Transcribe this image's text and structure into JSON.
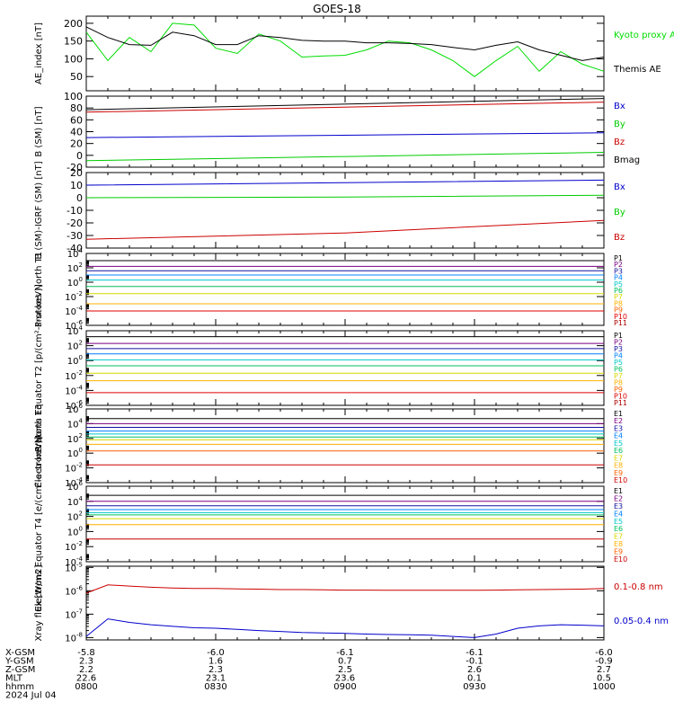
{
  "title": "GOES-18",
  "date": "2024 Jul 04",
  "time_axis": {
    "ticks": [
      "0800",
      "0830",
      "0900",
      "0930",
      "1000"
    ],
    "rows": [
      {
        "label": "X-GSM",
        "values": [
          "-5.8",
          "-6.0",
          "-6.1",
          "-6.1",
          "-6.0"
        ]
      },
      {
        "label": "Y-GSM",
        "values": [
          "2.3",
          "1.6",
          "0.7",
          "-0.1",
          "-0.9"
        ]
      },
      {
        "label": "Z-GSM",
        "values": [
          "2.2",
          "2.3",
          "2.5",
          "2.6",
          "2.7"
        ]
      },
      {
        "label": "MLT",
        "values": [
          "22.6",
          "23.1",
          "23.6",
          "0.1",
          "0.5"
        ]
      },
      {
        "label": "hhmm",
        "values": [
          "0800",
          "0830",
          "0900",
          "0930",
          "1000"
        ]
      }
    ]
  },
  "chart_data": [
    {
      "type": "line",
      "ylabel": "AE_index [nT]",
      "yticks": [
        "50",
        "100",
        "150",
        "200"
      ],
      "ylim": [
        10,
        220
      ],
      "x": [
        "0800",
        "0805",
        "0810",
        "0815",
        "0820",
        "0825",
        "0830",
        "0835",
        "0840",
        "0845",
        "0850",
        "0855",
        "0900",
        "0905",
        "0910",
        "0915",
        "0920",
        "0925",
        "0930",
        "0935",
        "0940",
        "0945",
        "0950",
        "0955",
        "1000"
      ],
      "series": [
        {
          "name": "Kyoto proxy AE",
          "color": "#00dd00",
          "values": [
            175,
            95,
            160,
            120,
            200,
            195,
            130,
            115,
            170,
            150,
            105,
            108,
            110,
            125,
            150,
            145,
            125,
            95,
            50,
            95,
            135,
            65,
            120,
            85,
            65
          ]
        },
        {
          "name": "Themis AE",
          "color": "#000000",
          "values": [
            190,
            160,
            140,
            138,
            175,
            165,
            140,
            140,
            165,
            160,
            152,
            150,
            150,
            145,
            145,
            143,
            140,
            132,
            125,
            138,
            148,
            125,
            110,
            95,
            105
          ]
        }
      ]
    },
    {
      "type": "line",
      "ylabel": "B (SM) [nT]",
      "yticks": [
        "-20",
        "0",
        "20",
        "40",
        "60",
        "80",
        "100"
      ],
      "ylim": [
        -20,
        100
      ],
      "x": [
        "0800",
        "1000"
      ],
      "series": [
        {
          "name": "Bx",
          "color": "#0000cc",
          "values": [
            30,
            38
          ]
        },
        {
          "name": "By",
          "color": "#00cc00",
          "values": [
            -9,
            5
          ]
        },
        {
          "name": "Bz",
          "color": "#cc0000",
          "values": [
            73,
            90
          ]
        },
        {
          "name": "Bmag",
          "color": "#000000",
          "values": [
            77,
            96
          ]
        }
      ]
    },
    {
      "type": "line",
      "ylabel": "B (SM)-IGRF (SM) [nT]",
      "yticks": [
        "-40",
        "-30",
        "-20",
        "-10",
        "0",
        "10",
        "20"
      ],
      "ylim": [
        -40,
        20
      ],
      "x": [
        "0800",
        "0900",
        "1000"
      ],
      "series": [
        {
          "name": "Bx",
          "color": "#0000cc",
          "values": [
            10,
            12,
            14
          ]
        },
        {
          "name": "By",
          "color": "#00cc00",
          "values": [
            0,
            0.5,
            2
          ]
        },
        {
          "name": "Bz",
          "color": "#cc0000",
          "values": [
            -33,
            -28,
            -18
          ]
        }
      ]
    },
    {
      "type": "line",
      "ylog": true,
      "ylabel": "Protons North T1",
      "ylim": [
        -6,
        4
      ],
      "yticks": [
        {
          "exp": "4",
          "pos": 4
        },
        {
          "exp": "2",
          "pos": 2
        },
        {
          "exp": "0",
          "pos": 0
        },
        {
          "exp": "-2",
          "pos": -2
        },
        {
          "exp": "-4",
          "pos": -4
        },
        {
          "exp": "-6",
          "pos": -6
        }
      ],
      "series": [
        {
          "name": "P1",
          "color": "#000000",
          "values": [
            3.0
          ]
        },
        {
          "name": "P2",
          "color": "#7a0080",
          "values": [
            2.2
          ]
        },
        {
          "name": "P3",
          "color": "#1010a0",
          "values": [
            1.6
          ]
        },
        {
          "name": "P4",
          "color": "#0080ff",
          "values": [
            1.0
          ]
        },
        {
          "name": "P5",
          "color": "#00c8c8",
          "values": [
            0.3
          ]
        },
        {
          "name": "P6",
          "color": "#00c060",
          "values": [
            -0.6
          ]
        },
        {
          "name": "P7",
          "color": "#d8d800",
          "values": [
            -1.6
          ]
        },
        {
          "name": "P8",
          "color": "#ffb000",
          "values": [
            -3.0
          ]
        },
        {
          "name": "P9",
          "color": "#ff6000",
          "values": []
        },
        {
          "name": "P10",
          "color": "#e00000",
          "values": [
            -4.0
          ]
        },
        {
          "name": "P11",
          "color": "#aa0000",
          "values": []
        }
      ]
    },
    {
      "type": "line",
      "ylog": true,
      "ylabel": "Protons Equator T2 [p/(cm²-s-sr-keV)]",
      "ylim": [
        -6,
        4
      ],
      "yticks": [
        {
          "exp": "4",
          "pos": 4
        },
        {
          "exp": "2",
          "pos": 2
        },
        {
          "exp": "0",
          "pos": 0
        },
        {
          "exp": "-2",
          "pos": -2
        },
        {
          "exp": "-4",
          "pos": -4
        },
        {
          "exp": "-6",
          "pos": -6
        }
      ],
      "series": [
        {
          "name": "P1",
          "color": "#000000",
          "values": [
            3.2
          ]
        },
        {
          "name": "P2",
          "color": "#7a0080",
          "values": [
            2.3
          ]
        },
        {
          "name": "P3",
          "color": "#1010a0",
          "values": [
            1.6
          ]
        },
        {
          "name": "P4",
          "color": "#0080ff",
          "values": [
            0.9
          ]
        },
        {
          "name": "P5",
          "color": "#00c8c8",
          "values": [
            0.1
          ]
        },
        {
          "name": "P6",
          "color": "#00c060",
          "values": [
            -0.7
          ]
        },
        {
          "name": "P7",
          "color": "#d8d800",
          "values": [
            -1.7
          ]
        },
        {
          "name": "P8",
          "color": "#ffb000",
          "values": [
            -2.7
          ]
        },
        {
          "name": "P9",
          "color": "#ff6000",
          "values": []
        },
        {
          "name": "P10",
          "color": "#e00000",
          "values": [
            -4.3
          ]
        },
        {
          "name": "P11",
          "color": "#aa0000",
          "values": []
        }
      ]
    },
    {
      "type": "line",
      "ylog": true,
      "ylabel": "Electrons North T3",
      "ylim": [
        -4,
        6
      ],
      "yticks": [
        {
          "exp": "6",
          "pos": 6
        },
        {
          "exp": "4",
          "pos": 4
        },
        {
          "exp": "2",
          "pos": 2
        },
        {
          "exp": "0",
          "pos": 0
        },
        {
          "exp": "-2",
          "pos": -2
        },
        {
          "exp": "-4",
          "pos": -4
        }
      ],
      "series": [
        {
          "name": "E1",
          "color": "#000000",
          "values": [
            4.7
          ]
        },
        {
          "name": "E2",
          "color": "#7a0080",
          "values": [
            4.0
          ]
        },
        {
          "name": "E3",
          "color": "#1010a0",
          "values": [
            3.5
          ]
        },
        {
          "name": "E4",
          "color": "#0080ff",
          "values": [
            3.0
          ]
        },
        {
          "name": "E5",
          "color": "#00c8c8",
          "values": [
            2.6
          ]
        },
        {
          "name": "E6",
          "color": "#00c060",
          "values": [
            2.2
          ]
        },
        {
          "name": "E7",
          "color": "#d8d800",
          "values": [
            1.8
          ]
        },
        {
          "name": "E8",
          "color": "#ffb000",
          "values": [
            1.2
          ]
        },
        {
          "name": "E9",
          "color": "#ff6000",
          "values": [
            0.3
          ]
        },
        {
          "name": "E10",
          "color": "#cc0000",
          "values": [
            -1.6
          ]
        }
      ]
    },
    {
      "type": "line",
      "ylog": true,
      "ylabel": "Electrons Equator T4 [e/(cm²-s-sr-keV)]",
      "ylim": [
        -4,
        6
      ],
      "yticks": [
        {
          "exp": "6",
          "pos": 6
        },
        {
          "exp": "4",
          "pos": 4
        },
        {
          "exp": "2",
          "pos": 2
        },
        {
          "exp": "0",
          "pos": 0
        },
        {
          "exp": "-2",
          "pos": -2
        },
        {
          "exp": "-4",
          "pos": -4
        }
      ],
      "series": [
        {
          "name": "E1",
          "color": "#000000",
          "values": [
            4.8
          ]
        },
        {
          "name": "E2",
          "color": "#7a0080",
          "values": [
            4.0
          ]
        },
        {
          "name": "E3",
          "color": "#1010a0",
          "values": [
            3.4
          ]
        },
        {
          "name": "E4",
          "color": "#0080ff",
          "values": [
            2.9
          ]
        },
        {
          "name": "E5",
          "color": "#00c8c8",
          "values": [
            2.5
          ]
        },
        {
          "name": "E6",
          "color": "#00c060",
          "values": [
            2.2
          ]
        },
        {
          "name": "E7",
          "color": "#d8d800",
          "values": [
            1.7
          ]
        },
        {
          "name": "E8",
          "color": "#ffb000",
          "values": [
            0.9
          ]
        },
        {
          "name": "E9",
          "color": "#ff6000",
          "values": []
        },
        {
          "name": "E10",
          "color": "#cc0000",
          "values": [
            -1.0
          ]
        }
      ]
    },
    {
      "type": "line",
      "ylog": true,
      "ylabel": "Xray flux [W/m2]",
      "ylim": [
        -8.1,
        -4.95
      ],
      "yticks": [
        {
          "exp": "-5",
          "pos": -5
        },
        {
          "exp": "-6",
          "pos": -6
        },
        {
          "exp": "-7",
          "pos": -7
        },
        {
          "exp": "-8",
          "pos": -8
        }
      ],
      "x": [
        "0800",
        "0805",
        "0810",
        "0815",
        "0820",
        "0825",
        "0830",
        "0835",
        "0840",
        "0845",
        "0850",
        "0855",
        "0900",
        "0905",
        "0910",
        "0915",
        "0920",
        "0925",
        "0930",
        "0935",
        "0940",
        "0945",
        "0950",
        "0955",
        "1000"
      ],
      "series": [
        {
          "name": "0.1-0.8 nm",
          "color": "#cc0000",
          "values": [
            -6.1,
            -5.75,
            -5.8,
            -5.85,
            -5.88,
            -5.9,
            -5.9,
            -5.92,
            -5.93,
            -5.95,
            -5.95,
            -5.96,
            -5.97,
            -5.97,
            -5.98,
            -5.98,
            -5.98,
            -5.98,
            -5.98,
            -5.97,
            -5.96,
            -5.95,
            -5.94,
            -5.93,
            -5.9
          ]
        },
        {
          "name": "0.05-0.4 nm",
          "color": "#0000cc",
          "values": [
            -7.95,
            -7.2,
            -7.35,
            -7.45,
            -7.52,
            -7.58,
            -7.6,
            -7.65,
            -7.7,
            -7.74,
            -7.78,
            -7.8,
            -7.82,
            -7.85,
            -7.87,
            -7.88,
            -7.9,
            -7.95,
            -8.0,
            -7.85,
            -7.6,
            -7.5,
            -7.45,
            -7.47,
            -7.5
          ]
        }
      ]
    }
  ]
}
